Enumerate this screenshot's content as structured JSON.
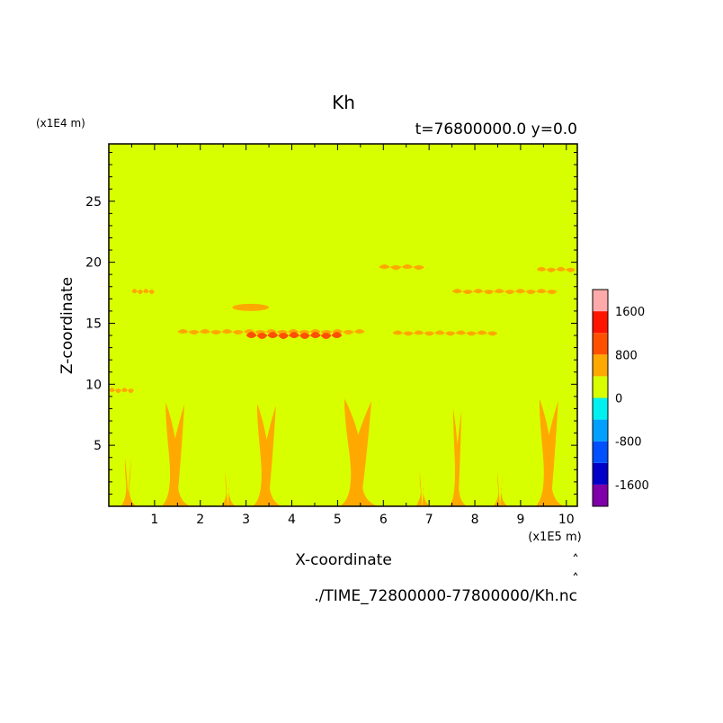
{
  "chart_data": {
    "type": "heatmap",
    "title": "Kh",
    "subtitle": "t=76800000.0 y=0.0",
    "xlabel": "X-coordinate",
    "ylabel": "Z-coordinate",
    "x_unit": "(x1E5 m)",
    "y_unit": "(x1E4 m)",
    "file_label": "./TIME_72800000-77800000/Kh.nc",
    "xlim": [
      0,
      10.24
    ],
    "ylim": [
      0,
      29.7
    ],
    "x_ticks": [
      1,
      2,
      3,
      4,
      5,
      6,
      7,
      8,
      9,
      10
    ],
    "y_ticks": [
      5,
      10,
      15,
      20,
      25
    ],
    "background_value_range": [
      0,
      400
    ],
    "colorbar": {
      "levels": [
        -2000,
        -1600,
        -1200,
        -800,
        -400,
        0,
        400,
        800,
        1200,
        1600,
        2000
      ],
      "colors": [
        "#7f00a8",
        "#0000c8",
        "#0050ff",
        "#00a0ff",
        "#00f0f0",
        "#d8ff00",
        "#ffa800",
        "#ff5000",
        "#ff1400",
        "#ffaaaa"
      ],
      "tick_labels": [
        "-1600",
        "-800",
        "0",
        "800",
        "1600"
      ]
    },
    "features": [
      {
        "name": "plume",
        "x": 0.42,
        "z_top": 4.0,
        "w": 0.15,
        "value": "400-800"
      },
      {
        "name": "plume",
        "x": 1.45,
        "z_top": 8.5,
        "w": 0.45,
        "value": "400-800"
      },
      {
        "name": "plume",
        "x": 2.6,
        "z_top": 2.8,
        "w": 0.12,
        "value": "400-800"
      },
      {
        "name": "plume",
        "x": 3.45,
        "z_top": 8.4,
        "w": 0.45,
        "value": "400-800"
      },
      {
        "name": "plume",
        "x": 5.45,
        "z_top": 8.8,
        "w": 0.65,
        "value": "400-800"
      },
      {
        "name": "plume",
        "x": 6.85,
        "z_top": 2.8,
        "w": 0.12,
        "value": "400-800"
      },
      {
        "name": "plume",
        "x": 7.62,
        "z_top": 8.0,
        "w": 0.2,
        "value": "400-800"
      },
      {
        "name": "plume",
        "x": 8.55,
        "z_top": 2.8,
        "w": 0.12,
        "value": "400-800"
      },
      {
        "name": "plume",
        "x": 9.62,
        "z_top": 8.8,
        "w": 0.45,
        "value": "400-800"
      },
      {
        "name": "band",
        "x0": 1.5,
        "x1": 5.6,
        "z": 14.3,
        "value": "400-800"
      },
      {
        "name": "core",
        "x0": 3.0,
        "x1": 5.1,
        "z": 14.0,
        "value": "800-1200"
      },
      {
        "name": "band",
        "x0": 6.2,
        "x1": 8.5,
        "z": 14.2,
        "value": "400-800"
      },
      {
        "name": "band",
        "x0": 7.5,
        "x1": 9.8,
        "z": 17.6,
        "value": "400-800"
      },
      {
        "name": "band",
        "x0": 9.35,
        "x1": 10.2,
        "z": 19.4,
        "value": "400-800"
      },
      {
        "name": "blob",
        "x0": 2.7,
        "x1": 3.5,
        "z": 16.3,
        "value": "400-800"
      },
      {
        "name": "band",
        "x0": 0.0,
        "x1": 0.55,
        "z": 9.5,
        "value": "400-800"
      },
      {
        "name": "band",
        "x0": 0.5,
        "x1": 1.0,
        "z": 17.6,
        "value": "400-800"
      },
      {
        "name": "band",
        "x0": 5.9,
        "x1": 6.9,
        "z": 19.6,
        "value": "400-800"
      }
    ]
  }
}
